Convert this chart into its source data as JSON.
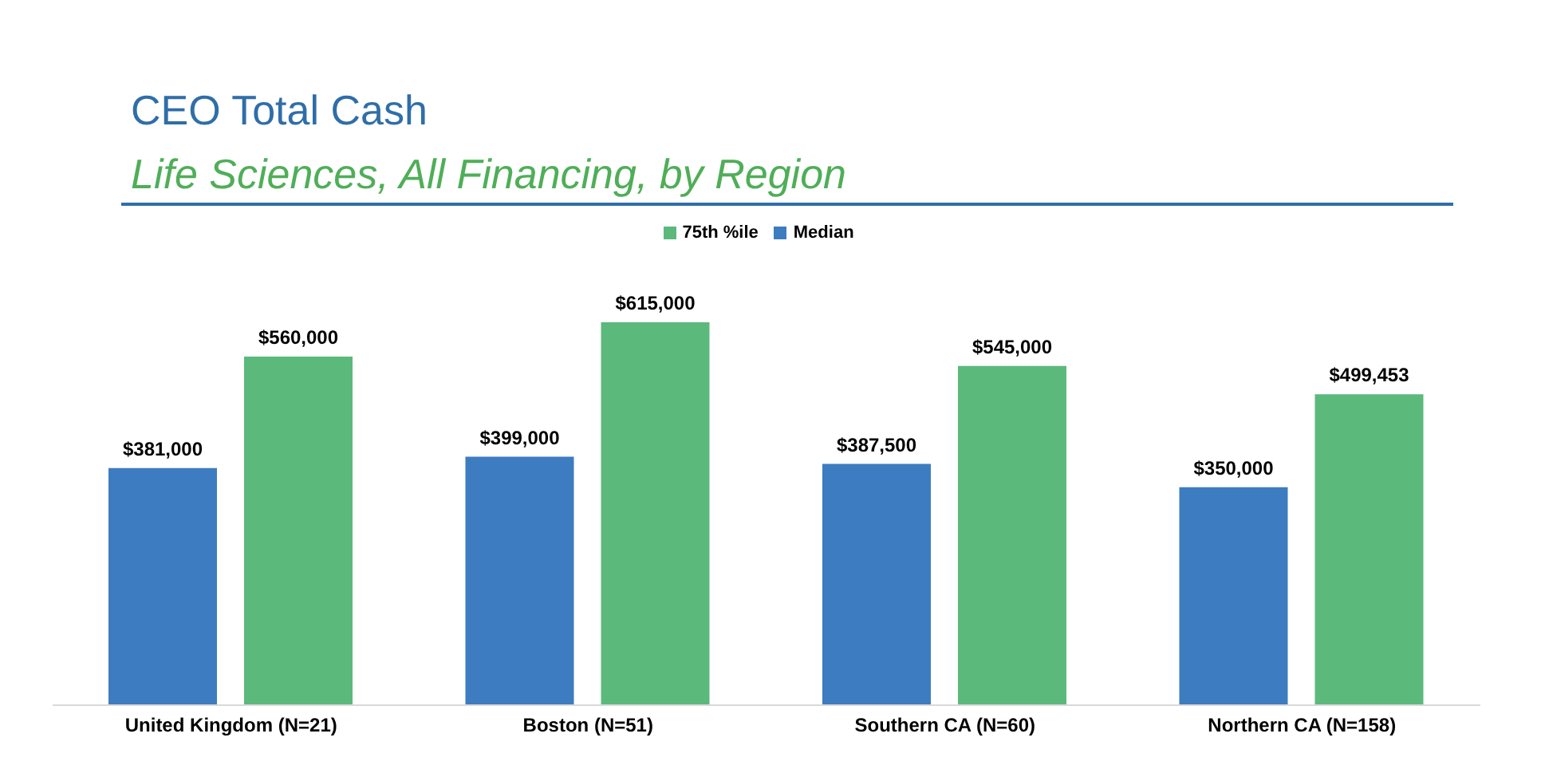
{
  "chart_data": {
    "type": "bar",
    "title": "CEO Total Cash",
    "subtitle": "Life Sciences, All Financing, by Region",
    "categories": [
      "United Kingdom (N=21)",
      "Boston (N=51)",
      "Southern CA (N=60)",
      "Northern CA (N=158)"
    ],
    "series": [
      {
        "name": "Median",
        "color": "#3d7cc0",
        "values": [
          381000,
          399000,
          387500,
          350000
        ],
        "value_labels": [
          "$381,000",
          "$399,000",
          "$387,500",
          "$350,000"
        ]
      },
      {
        "name": "75th %ile",
        "color": "#5cb97c",
        "values": [
          560000,
          615000,
          545000,
          499453
        ],
        "value_labels": [
          "$560,000",
          "$615,000",
          "$545,000",
          "$499,453"
        ]
      }
    ],
    "legend": "top",
    "grid": false,
    "tick_labels": "x"
  }
}
